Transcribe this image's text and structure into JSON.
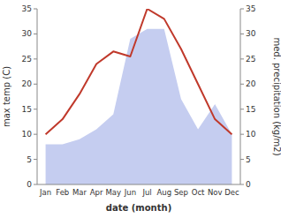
{
  "chart_data": {
    "type": "line",
    "categories": [
      "Jan",
      "Feb",
      "Mar",
      "Apr",
      "May",
      "Jun",
      "Jul",
      "Aug",
      "Sep",
      "Oct",
      "Nov",
      "Dec"
    ],
    "xlabel": "date (month)",
    "ylabel": "max temp (C)",
    "y2label": "med. precipitation (kg/m2)",
    "series": [
      {
        "type": "area",
        "axis": "y2",
        "color": "#c5cdf0",
        "values": [
          8,
          8,
          9,
          11,
          14,
          29,
          31,
          31,
          17,
          11,
          16,
          10
        ]
      },
      {
        "type": "line",
        "color": "#c0392b",
        "values": [
          10,
          13,
          18,
          24,
          26.5,
          25.5,
          35,
          33,
          27,
          20,
          13,
          10
        ]
      }
    ],
    "ylim": [
      0,
      35
    ],
    "yticks": [
      0,
      5,
      10,
      15,
      20,
      25,
      30,
      35
    ],
    "y2lim": [
      0,
      35
    ],
    "y2ticks": [
      0,
      5,
      10,
      15,
      20,
      25,
      30,
      35
    ],
    "grid": false
  }
}
